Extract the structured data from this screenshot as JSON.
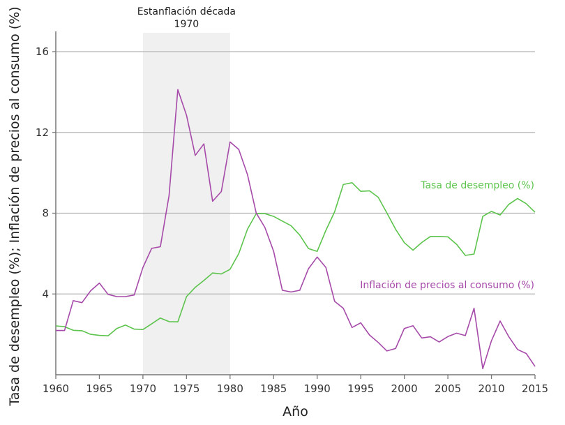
{
  "chart_data": {
    "type": "line",
    "title": "",
    "xlabel": "Año",
    "ylabel": "Tasa de desempleo (%); Inflación de precios al consumo (%)",
    "xlim": [
      1960,
      2015
    ],
    "ylim": [
      0,
      16
    ],
    "xticks": [
      1960,
      1965,
      1970,
      1975,
      1980,
      1985,
      1990,
      1995,
      2000,
      2005,
      2010,
      2015
    ],
    "yticks": [
      4,
      8,
      12,
      16
    ],
    "grid": "horizontal",
    "shaded_region": {
      "from": 1970,
      "to": 1980,
      "label_line1": "Estanflación década",
      "label_line2": "1970",
      "color": "#f0f0f0"
    },
    "x": [
      1960,
      1961,
      1962,
      1963,
      1964,
      1965,
      1966,
      1967,
      1968,
      1969,
      1970,
      1971,
      1972,
      1973,
      1974,
      1975,
      1976,
      1977,
      1978,
      1979,
      1980,
      1981,
      1982,
      1983,
      1984,
      1985,
      1986,
      1987,
      1988,
      1989,
      1990,
      1991,
      1992,
      1993,
      1994,
      1995,
      1996,
      1997,
      1998,
      1999,
      2000,
      2001,
      2002,
      2003,
      2004,
      2005,
      2006,
      2007,
      2008,
      2009,
      2010,
      2011,
      2012,
      2013,
      2014,
      2015
    ],
    "series": [
      {
        "name": "Tasa de desempleo (%)",
        "color": "#5cc44c",
        "values": [
          2.42,
          2.38,
          2.2,
          2.18,
          2.0,
          1.95,
          1.93,
          2.29,
          2.46,
          2.26,
          2.24,
          2.52,
          2.81,
          2.63,
          2.62,
          3.87,
          4.33,
          4.67,
          5.04,
          4.99,
          5.22,
          6.0,
          7.21,
          7.98,
          7.98,
          7.84,
          7.61,
          7.38,
          6.92,
          6.25,
          6.11,
          7.15,
          8.07,
          9.42,
          9.51,
          9.08,
          9.11,
          8.79,
          8.01,
          7.21,
          6.54,
          6.17,
          6.55,
          6.85,
          6.85,
          6.83,
          6.46,
          5.91,
          5.98,
          7.84,
          8.09,
          7.91,
          8.44,
          8.73,
          8.47,
          8.05
        ]
      },
      {
        "name": "Inflación de precios al consumo (%)",
        "color": "#a64aa9",
        "values": [
          2.19,
          2.19,
          3.67,
          3.57,
          4.16,
          4.54,
          3.98,
          3.87,
          3.87,
          3.95,
          5.31,
          6.26,
          6.34,
          8.88,
          14.12,
          12.85,
          10.86,
          11.43,
          8.59,
          9.07,
          11.53,
          11.16,
          9.91,
          8.01,
          7.29,
          6.11,
          4.18,
          4.1,
          4.18,
          5.25,
          5.83,
          5.31,
          3.64,
          3.29,
          2.34,
          2.57,
          1.97,
          1.6,
          1.18,
          1.3,
          2.29,
          2.43,
          1.82,
          1.88,
          1.62,
          1.89,
          2.06,
          1.94,
          3.29,
          0.3,
          1.68,
          2.66,
          1.88,
          1.25,
          1.05,
          0.41
        ]
      }
    ]
  }
}
